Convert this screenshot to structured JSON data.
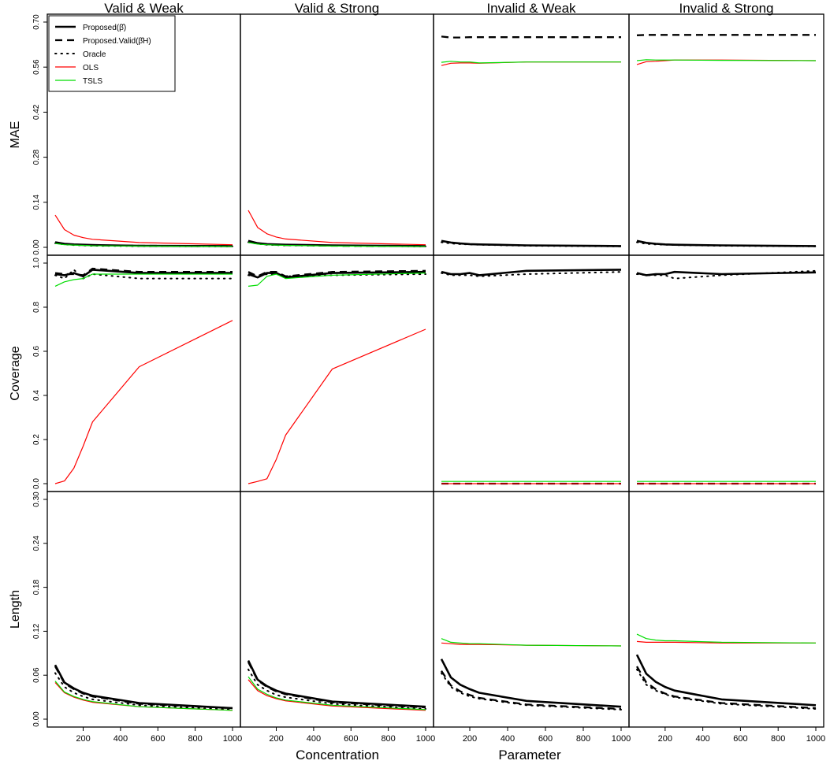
{
  "figure": {
    "xlabel_left": "Concentration",
    "xlabel_right": "Parameter",
    "columns": [
      "Valid & Weak",
      "Valid & Strong",
      "Invalid & Weak",
      "Invalid & Strong"
    ],
    "x_ticks": [
      "200",
      "400",
      "600",
      "800",
      "1000"
    ],
    "rows": [
      {
        "label": "MAE",
        "ylim": [
          0,
          0.7
        ],
        "yticks": [
          "0.00",
          "0.14",
          "0.28",
          "0.42",
          "0.56",
          "0.70"
        ]
      },
      {
        "label": "Coverage",
        "ylim": [
          0,
          1.0
        ],
        "yticks": [
          "0.0",
          "0.2",
          "0.4",
          "0.6",
          "0.8",
          "1.0"
        ]
      },
      {
        "label": "Length",
        "ylim": [
          0,
          0.3
        ],
        "yticks": [
          "0.00",
          "0.06",
          "0.12",
          "0.18",
          "0.24",
          "0.30"
        ]
      }
    ],
    "legend": {
      "placement": "top-left",
      "entries": [
        {
          "label": "Proposed(β̂)",
          "color": "#000000",
          "style": "solid-thick"
        },
        {
          "label": "Proposed.Valid(β̂H)",
          "color": "#000000",
          "style": "dashed-thick"
        },
        {
          "label": "Oracle",
          "color": "#000000",
          "style": "dotted"
        },
        {
          "label": "OLS",
          "color": "#ff0000",
          "style": "solid-thin"
        },
        {
          "label": "TSLS",
          "color": "#00dd00",
          "style": "solid-thin"
        }
      ]
    }
  },
  "chart_data": [
    {
      "type": "line",
      "row": "MAE",
      "column": "Valid & Weak",
      "ylim": [
        0,
        0.7
      ],
      "xlim": [
        50,
        1000
      ],
      "x": [
        50,
        100,
        150,
        200,
        250,
        500,
        1000
      ],
      "series": [
        {
          "name": "Proposed(β̂)",
          "values": [
            0.016,
            0.011,
            0.009,
            0.008,
            0.007,
            0.005,
            0.004
          ]
        },
        {
          "name": "Proposed.Valid(β̂H)",
          "values": [
            0.014,
            0.01,
            0.008,
            0.007,
            0.006,
            0.005,
            0.004
          ]
        },
        {
          "name": "Oracle",
          "values": [
            0.013,
            0.009,
            0.007,
            0.006,
            0.005,
            0.004,
            0.003
          ]
        },
        {
          "name": "OLS",
          "values": [
            0.1,
            0.055,
            0.038,
            0.03,
            0.025,
            0.015,
            0.008
          ]
        },
        {
          "name": "TSLS",
          "values": [
            0.012,
            0.008,
            0.007,
            0.006,
            0.005,
            0.004,
            0.003
          ]
        }
      ]
    },
    {
      "type": "line",
      "row": "MAE",
      "column": "Valid & Strong",
      "ylim": [
        0,
        0.7
      ],
      "xlim": [
        50,
        1000
      ],
      "x": [
        50,
        100,
        150,
        200,
        250,
        500,
        1000
      ],
      "series": [
        {
          "name": "Proposed(β̂)",
          "values": [
            0.02,
            0.013,
            0.01,
            0.009,
            0.008,
            0.006,
            0.004
          ]
        },
        {
          "name": "Proposed.Valid(β̂H)",
          "values": [
            0.018,
            0.012,
            0.009,
            0.008,
            0.007,
            0.005,
            0.004
          ]
        },
        {
          "name": "Oracle",
          "values": [
            0.016,
            0.011,
            0.008,
            0.007,
            0.006,
            0.005,
            0.003
          ]
        },
        {
          "name": "OLS",
          "values": [
            0.115,
            0.062,
            0.042,
            0.032,
            0.026,
            0.015,
            0.008
          ]
        },
        {
          "name": "TSLS",
          "values": [
            0.015,
            0.01,
            0.008,
            0.007,
            0.006,
            0.004,
            0.003
          ]
        }
      ]
    },
    {
      "type": "line",
      "row": "MAE",
      "column": "Invalid & Weak",
      "ylim": [
        0,
        0.7
      ],
      "xlim": [
        50,
        1000
      ],
      "x": [
        50,
        100,
        150,
        200,
        250,
        500,
        1000
      ],
      "series": [
        {
          "name": "Proposed(β̂)",
          "values": [
            0.02,
            0.015,
            0.012,
            0.01,
            0.009,
            0.006,
            0.004
          ]
        },
        {
          "name": "Proposed.Valid(β̂H)",
          "values": [
            0.655,
            0.652,
            0.652,
            0.653,
            0.653,
            0.653,
            0.653
          ]
        },
        {
          "name": "Oracle",
          "values": [
            0.016,
            0.012,
            0.01,
            0.009,
            0.008,
            0.005,
            0.003
          ]
        },
        {
          "name": "OLS",
          "values": [
            0.565,
            0.572,
            0.573,
            0.573,
            0.572,
            0.576,
            0.576
          ]
        },
        {
          "name": "TSLS",
          "values": [
            0.575,
            0.578,
            0.576,
            0.576,
            0.573,
            0.576,
            0.576
          ]
        }
      ]
    },
    {
      "type": "line",
      "row": "MAE",
      "column": "Invalid & Strong",
      "ylim": [
        0,
        0.7
      ],
      "xlim": [
        50,
        1000
      ],
      "x": [
        50,
        100,
        150,
        200,
        250,
        500,
        1000
      ],
      "series": [
        {
          "name": "Proposed(β̂)",
          "values": [
            0.02,
            0.014,
            0.011,
            0.009,
            0.008,
            0.006,
            0.004
          ]
        },
        {
          "name": "Proposed.Valid(β̂H)",
          "values": [
            0.659,
            0.66,
            0.66,
            0.66,
            0.66,
            0.66,
            0.66
          ]
        },
        {
          "name": "Oracle",
          "values": [
            0.016,
            0.011,
            0.009,
            0.008,
            0.007,
            0.005,
            0.003
          ]
        },
        {
          "name": "OLS",
          "values": [
            0.568,
            0.577,
            0.578,
            0.58,
            0.582,
            0.582,
            0.58
          ]
        },
        {
          "name": "TSLS",
          "values": [
            0.58,
            0.583,
            0.582,
            0.582,
            0.582,
            0.581,
            0.58
          ]
        }
      ]
    },
    {
      "type": "line",
      "row": "Coverage",
      "column": "Valid & Weak",
      "ylim": [
        0,
        1.0
      ],
      "xlim": [
        50,
        1000
      ],
      "x": [
        50,
        100,
        150,
        200,
        250,
        500,
        1000
      ],
      "series": [
        {
          "name": "Proposed(β̂)",
          "values": [
            0.95,
            0.945,
            0.955,
            0.94,
            0.97,
            0.955,
            0.955
          ]
        },
        {
          "name": "Proposed.Valid(β̂H)",
          "values": [
            0.955,
            0.95,
            0.95,
            0.945,
            0.975,
            0.96,
            0.96
          ]
        },
        {
          "name": "Oracle",
          "values": [
            0.945,
            0.93,
            0.97,
            0.93,
            0.95,
            0.93,
            0.93
          ]
        },
        {
          "name": "OLS",
          "values": [
            0.0,
            0.012,
            0.07,
            0.17,
            0.28,
            0.53,
            0.74
          ]
        },
        {
          "name": "TSLS",
          "values": [
            0.895,
            0.915,
            0.925,
            0.93,
            0.95,
            0.95,
            0.95
          ]
        }
      ]
    },
    {
      "type": "line",
      "row": "Coverage",
      "column": "Valid & Strong",
      "ylim": [
        0,
        1.0
      ],
      "xlim": [
        50,
        1000
      ],
      "x": [
        50,
        100,
        150,
        200,
        250,
        500,
        1000
      ],
      "series": [
        {
          "name": "Proposed(β̂)",
          "values": [
            0.95,
            0.935,
            0.955,
            0.955,
            0.935,
            0.955,
            0.96
          ]
        },
        {
          "name": "Proposed.Valid(β̂H)",
          "values": [
            0.96,
            0.94,
            0.96,
            0.96,
            0.94,
            0.96,
            0.965
          ]
        },
        {
          "name": "Oracle",
          "values": [
            0.945,
            0.94,
            0.95,
            0.95,
            0.94,
            0.945,
            0.95
          ]
        },
        {
          "name": "OLS",
          "values": [
            0.0,
            0.01,
            0.022,
            0.11,
            0.22,
            0.52,
            0.7
          ]
        },
        {
          "name": "TSLS",
          "values": [
            0.895,
            0.9,
            0.94,
            0.95,
            0.93,
            0.945,
            0.955
          ]
        }
      ]
    },
    {
      "type": "line",
      "row": "Coverage",
      "column": "Invalid & Weak",
      "ylim": [
        0,
        1.0
      ],
      "xlim": [
        50,
        1000
      ],
      "x": [
        50,
        100,
        150,
        200,
        250,
        500,
        1000
      ],
      "series": [
        {
          "name": "Proposed(β̂)",
          "values": [
            0.96,
            0.95,
            0.95,
            0.955,
            0.945,
            0.965,
            0.97
          ]
        },
        {
          "name": "Proposed.Valid(β̂H)",
          "values": [
            0.0,
            0.0,
            0.0,
            0.0,
            0.0,
            0.0,
            0.0
          ]
        },
        {
          "name": "Oracle",
          "values": [
            0.955,
            0.945,
            0.945,
            0.945,
            0.94,
            0.95,
            0.96
          ]
        },
        {
          "name": "OLS",
          "values": [
            0.0,
            0.0,
            0.0,
            0.0,
            0.0,
            0.0,
            0.0
          ]
        },
        {
          "name": "TSLS",
          "values": [
            0.01,
            0.01,
            0.01,
            0.01,
            0.01,
            0.01,
            0.01
          ]
        }
      ]
    },
    {
      "type": "line",
      "row": "Coverage",
      "column": "Invalid & Strong",
      "ylim": [
        0,
        1.0
      ],
      "xlim": [
        50,
        1000
      ],
      "x": [
        50,
        100,
        150,
        200,
        250,
        500,
        1000
      ],
      "series": [
        {
          "name": "Proposed(β̂)",
          "values": [
            0.955,
            0.945,
            0.95,
            0.95,
            0.96,
            0.95,
            0.958
          ]
        },
        {
          "name": "Proposed.Valid(β̂H)",
          "values": [
            0.0,
            0.0,
            0.0,
            0.0,
            0.0,
            0.0,
            0.0
          ]
        },
        {
          "name": "Oracle",
          "values": [
            0.95,
            0.945,
            0.945,
            0.945,
            0.93,
            0.945,
            0.965
          ]
        },
        {
          "name": "OLS",
          "values": [
            0.0,
            0.0,
            0.0,
            0.0,
            0.0,
            0.0,
            0.0
          ]
        },
        {
          "name": "TSLS",
          "values": [
            0.01,
            0.01,
            0.01,
            0.01,
            0.01,
            0.01,
            0.01
          ]
        }
      ]
    },
    {
      "type": "line",
      "row": "Length",
      "column": "Valid & Weak",
      "ylim": [
        0,
        0.3
      ],
      "xlim": [
        50,
        1000
      ],
      "x": [
        50,
        100,
        150,
        200,
        250,
        500,
        1000
      ],
      "series": [
        {
          "name": "Proposed(β̂)",
          "values": [
            0.074,
            0.05,
            0.042,
            0.036,
            0.032,
            0.022,
            0.015
          ]
        },
        {
          "name": "Proposed.Valid(β̂H)",
          "values": [
            0.072,
            0.049,
            0.041,
            0.035,
            0.031,
            0.021,
            0.015
          ]
        },
        {
          "name": "Oracle",
          "values": [
            0.063,
            0.044,
            0.036,
            0.031,
            0.027,
            0.019,
            0.013
          ]
        },
        {
          "name": "OLS",
          "values": [
            0.05,
            0.036,
            0.03,
            0.026,
            0.023,
            0.017,
            0.012
          ]
        },
        {
          "name": "TSLS",
          "values": [
            0.052,
            0.037,
            0.031,
            0.027,
            0.024,
            0.017,
            0.012
          ]
        }
      ]
    },
    {
      "type": "line",
      "row": "Length",
      "column": "Valid & Strong",
      "ylim": [
        0,
        0.3
      ],
      "xlim": [
        50,
        1000
      ],
      "x": [
        50,
        100,
        150,
        200,
        250,
        500,
        1000
      ],
      "series": [
        {
          "name": "Proposed(β̂)",
          "values": [
            0.08,
            0.054,
            0.045,
            0.039,
            0.035,
            0.024,
            0.017
          ]
        },
        {
          "name": "Proposed.Valid(β̂H)",
          "values": [
            0.078,
            0.053,
            0.044,
            0.038,
            0.034,
            0.023,
            0.016
          ]
        },
        {
          "name": "Oracle",
          "values": [
            0.068,
            0.047,
            0.039,
            0.033,
            0.03,
            0.021,
            0.014
          ]
        },
        {
          "name": "OLS",
          "values": [
            0.054,
            0.039,
            0.032,
            0.028,
            0.025,
            0.018,
            0.012
          ]
        },
        {
          "name": "TSLS",
          "values": [
            0.058,
            0.041,
            0.034,
            0.029,
            0.026,
            0.019,
            0.013
          ]
        }
      ]
    },
    {
      "type": "line",
      "row": "Length",
      "column": "Invalid & Weak",
      "ylim": [
        0,
        0.3
      ],
      "xlim": [
        50,
        1000
      ],
      "x": [
        50,
        100,
        150,
        200,
        250,
        500,
        1000
      ],
      "series": [
        {
          "name": "Proposed(β̂)",
          "values": [
            0.082,
            0.057,
            0.047,
            0.041,
            0.036,
            0.025,
            0.017
          ]
        },
        {
          "name": "Proposed.Valid(β̂H)",
          "values": [
            0.066,
            0.046,
            0.038,
            0.033,
            0.029,
            0.02,
            0.014
          ]
        },
        {
          "name": "Oracle",
          "values": [
            0.063,
            0.044,
            0.036,
            0.031,
            0.028,
            0.019,
            0.013
          ]
        },
        {
          "name": "OLS",
          "values": [
            0.104,
            0.103,
            0.102,
            0.102,
            0.102,
            0.101,
            0.1
          ]
        },
        {
          "name": "TSLS",
          "values": [
            0.11,
            0.105,
            0.104,
            0.103,
            0.103,
            0.101,
            0.1
          ]
        }
      ]
    },
    {
      "type": "line",
      "row": "Length",
      "column": "Invalid & Strong",
      "ylim": [
        0,
        0.3
      ],
      "xlim": [
        50,
        1000
      ],
      "x": [
        50,
        100,
        150,
        200,
        250,
        500,
        1000
      ],
      "series": [
        {
          "name": "Proposed(β̂)",
          "values": [
            0.088,
            0.062,
            0.051,
            0.044,
            0.039,
            0.027,
            0.019
          ]
        },
        {
          "name": "Proposed.Valid(β̂H)",
          "values": [
            0.072,
            0.05,
            0.041,
            0.035,
            0.031,
            0.022,
            0.015
          ]
        },
        {
          "name": "Oracle",
          "values": [
            0.068,
            0.047,
            0.039,
            0.034,
            0.03,
            0.021,
            0.014
          ]
        },
        {
          "name": "OLS",
          "values": [
            0.106,
            0.105,
            0.105,
            0.105,
            0.105,
            0.104,
            0.104
          ]
        },
        {
          "name": "TSLS",
          "values": [
            0.116,
            0.11,
            0.108,
            0.107,
            0.107,
            0.105,
            0.104
          ]
        }
      ]
    }
  ]
}
